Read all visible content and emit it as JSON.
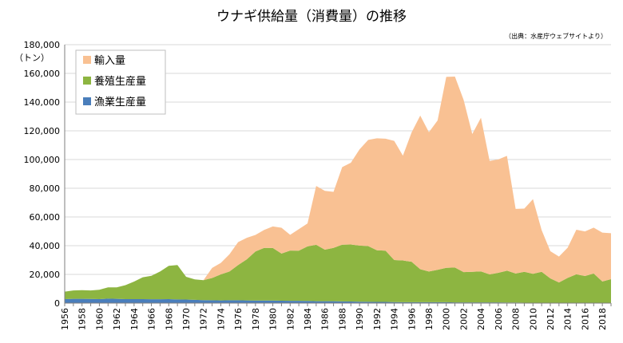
{
  "chart_data": {
    "type": "area",
    "title": "ウナギ供給量（消費量）の推移",
    "source": "（出典：水産庁ウェブサイトより）",
    "yunit": "（トン）",
    "ylim": [
      0,
      180000
    ],
    "yticks": [
      0,
      20000,
      40000,
      60000,
      80000,
      100000,
      120000,
      140000,
      160000,
      180000
    ],
    "ytick_labels": [
      "0",
      "20,000",
      "40,000",
      "60,000",
      "80,000",
      "100,000",
      "120,000",
      "140,000",
      "160,000",
      "180,000"
    ],
    "x": [
      1956,
      1957,
      1958,
      1959,
      1960,
      1961,
      1962,
      1963,
      1964,
      1965,
      1966,
      1967,
      1968,
      1969,
      1970,
      1971,
      1972,
      1973,
      1974,
      1975,
      1976,
      1977,
      1978,
      1979,
      1980,
      1981,
      1982,
      1983,
      1984,
      1985,
      1986,
      1987,
      1988,
      1989,
      1990,
      1991,
      1992,
      1993,
      1994,
      1995,
      1996,
      1997,
      1998,
      1999,
      2000,
      2001,
      2002,
      2003,
      2004,
      2005,
      2006,
      2007,
      2008,
      2009,
      2010,
      2011,
      2012,
      2013,
      2014,
      2015,
      2016,
      2017,
      2018,
      2019
    ],
    "xtick_labels": [
      "1956",
      "1958",
      "1960",
      "1962",
      "1964",
      "1966",
      "1968",
      "1970",
      "1972",
      "1974",
      "1976",
      "1978",
      "1980",
      "1982",
      "1984",
      "1986",
      "1988",
      "1990",
      "1992",
      "1994",
      "1996",
      "1998",
      "2000",
      "2002",
      "2004",
      "2006",
      "2008",
      "2010",
      "2012",
      "2014",
      "2016",
      "2018"
    ],
    "series": [
      {
        "name": "漁業生産量",
        "color": "#4a7ebb",
        "values": [
          2800,
          3000,
          3000,
          2900,
          2800,
          3100,
          3000,
          2800,
          2800,
          2800,
          2700,
          2700,
          2800,
          2600,
          2500,
          2300,
          2100,
          2000,
          1900,
          2000,
          2000,
          1900,
          1800,
          1800,
          1800,
          1700,
          1600,
          1600,
          1500,
          1300,
          1300,
          1300,
          1200,
          1100,
          1000,
          900,
          800,
          800,
          700,
          600,
          600,
          600,
          600,
          600,
          600,
          500,
          500,
          500,
          500,
          500,
          500,
          400,
          400,
          300,
          300,
          300,
          200,
          200,
          100,
          100,
          100,
          100,
          100,
          100
        ]
      },
      {
        "name": "養殖生産量",
        "color": "#8db541",
        "values": [
          5200,
          5800,
          6000,
          5900,
          6500,
          7900,
          8000,
          9700,
          12200,
          15200,
          16300,
          19300,
          23200,
          23900,
          15800,
          14200,
          13900,
          15500,
          18100,
          20000,
          24500,
          28600,
          34200,
          36700,
          36600,
          32800,
          35000,
          34900,
          38000,
          39300,
          35900,
          37200,
          39500,
          39700,
          39100,
          38800,
          36000,
          35700,
          29300,
          29100,
          28200,
          23000,
          21400,
          22600,
          24000,
          24300,
          21100,
          21300,
          21600,
          19500,
          20600,
          22200,
          20200,
          21500,
          20100,
          21500,
          17000,
          14200,
          17500,
          20000,
          18800,
          20500,
          15000,
          16600
        ]
      },
      {
        "name": "輸入量",
        "color": "#f9c193",
        "values": [
          0,
          0,
          0,
          0,
          0,
          0,
          0,
          0,
          0,
          0,
          0,
          0,
          0,
          0,
          0,
          0,
          0,
          7000,
          8000,
          12000,
          16000,
          15000,
          11500,
          12500,
          15000,
          18000,
          11000,
          15000,
          16000,
          41000,
          41000,
          39000,
          54000,
          57000,
          67000,
          74000,
          78000,
          78000,
          83000,
          73000,
          90000,
          107000,
          97000,
          104000,
          133000,
          133000,
          120000,
          96000,
          107000,
          79000,
          79000,
          80000,
          45000,
          44000,
          52000,
          29000,
          19000,
          18000,
          21000,
          31000,
          31000,
          32000,
          34000,
          32000
        ]
      }
    ],
    "legend": [
      "輸入量",
      "養殖生産量",
      "漁業生産量"
    ],
    "legend_position": "top-left",
    "grid": true
  }
}
